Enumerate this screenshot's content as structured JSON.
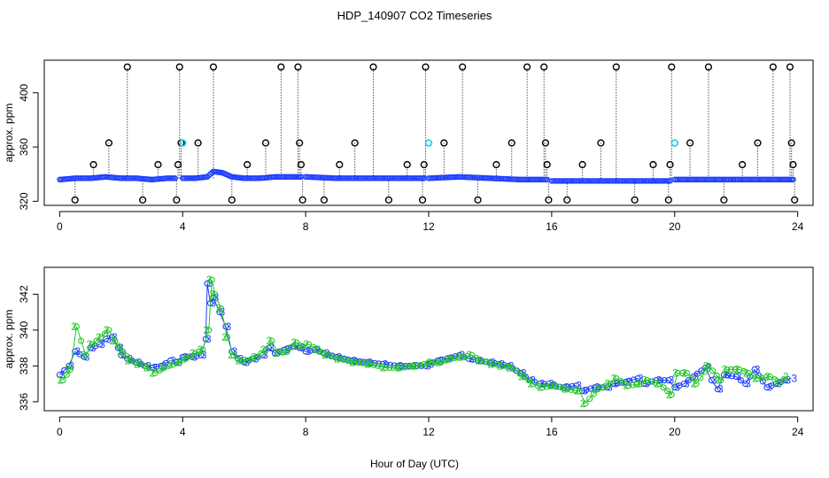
{
  "chart_data": [
    {
      "type": "scatter",
      "title": "HDP_140907  CO2 Timeseries",
      "ylabel": "approx. ppm",
      "xlim": [
        -0.5,
        24.5
      ],
      "ylim": [
        317,
        424
      ],
      "xticks": [
        0,
        4,
        8,
        12,
        16,
        20,
        24
      ],
      "yticks": [
        320,
        360,
        400
      ],
      "colors": {
        "baseline": "#1f3fff",
        "outlier": "#000000",
        "highlight": "#22d4e6"
      },
      "baseline_segments": [
        {
          "x": [
            0.0,
            0.5,
            1.0,
            1.5,
            2.0,
            2.5,
            3.0,
            3.5,
            3.8
          ],
          "y": [
            336,
            337,
            337,
            338,
            337,
            337,
            336,
            337,
            337
          ]
        },
        {
          "x": [
            4.0,
            4.4,
            4.8,
            5.0,
            5.3,
            5.6,
            6.0,
            6.5,
            7.0,
            7.5,
            7.9
          ],
          "y": [
            337,
            337,
            338,
            342,
            341,
            338,
            337,
            337,
            338,
            338,
            338
          ]
        },
        {
          "x": [
            8.0,
            9.0,
            10.0,
            11.0,
            11.9
          ],
          "y": [
            338,
            337,
            337,
            337,
            337
          ]
        },
        {
          "x": [
            12.0,
            13.0,
            14.0,
            15.0,
            15.9
          ],
          "y": [
            337,
            338,
            337,
            336,
            336
          ]
        },
        {
          "x": [
            16.0,
            17.0,
            18.0,
            19.0,
            19.9
          ],
          "y": [
            335,
            335,
            335,
            335,
            335
          ]
        },
        {
          "x": [
            20.0,
            21.0,
            22.0,
            23.0,
            23.9
          ],
          "y": [
            336,
            336,
            336,
            336,
            336
          ]
        }
      ],
      "outliers": [
        {
          "x": 0.5,
          "y": 321
        },
        {
          "x": 1.1,
          "y": 347
        },
        {
          "x": 1.6,
          "y": 363
        },
        {
          "x": 2.2,
          "y": 419
        },
        {
          "x": 2.7,
          "y": 321
        },
        {
          "x": 3.2,
          "y": 347
        },
        {
          "x": 3.8,
          "y": 321
        },
        {
          "x": 3.85,
          "y": 347
        },
        {
          "x": 3.9,
          "y": 419
        },
        {
          "x": 3.95,
          "y": 363
        },
        {
          "x": 4.5,
          "y": 363
        },
        {
          "x": 5.0,
          "y": 419
        },
        {
          "x": 5.6,
          "y": 321
        },
        {
          "x": 6.1,
          "y": 347
        },
        {
          "x": 6.7,
          "y": 363
        },
        {
          "x": 7.2,
          "y": 419
        },
        {
          "x": 7.75,
          "y": 419
        },
        {
          "x": 7.8,
          "y": 363
        },
        {
          "x": 7.85,
          "y": 347
        },
        {
          "x": 7.9,
          "y": 321
        },
        {
          "x": 8.6,
          "y": 321
        },
        {
          "x": 9.1,
          "y": 347
        },
        {
          "x": 9.6,
          "y": 363
        },
        {
          "x": 10.2,
          "y": 419
        },
        {
          "x": 10.7,
          "y": 321
        },
        {
          "x": 11.3,
          "y": 347
        },
        {
          "x": 11.8,
          "y": 321
        },
        {
          "x": 11.85,
          "y": 347
        },
        {
          "x": 11.9,
          "y": 419
        },
        {
          "x": 12.5,
          "y": 363
        },
        {
          "x": 13.1,
          "y": 419
        },
        {
          "x": 13.6,
          "y": 321
        },
        {
          "x": 14.2,
          "y": 347
        },
        {
          "x": 14.7,
          "y": 363
        },
        {
          "x": 15.2,
          "y": 419
        },
        {
          "x": 15.75,
          "y": 419
        },
        {
          "x": 15.8,
          "y": 363
        },
        {
          "x": 15.85,
          "y": 347
        },
        {
          "x": 15.9,
          "y": 321
        },
        {
          "x": 16.5,
          "y": 321
        },
        {
          "x": 17.0,
          "y": 347
        },
        {
          "x": 17.6,
          "y": 363
        },
        {
          "x": 18.1,
          "y": 419
        },
        {
          "x": 18.7,
          "y": 321
        },
        {
          "x": 19.3,
          "y": 347
        },
        {
          "x": 19.8,
          "y": 321
        },
        {
          "x": 19.85,
          "y": 347
        },
        {
          "x": 19.9,
          "y": 419
        },
        {
          "x": 20.5,
          "y": 363
        },
        {
          "x": 21.1,
          "y": 419
        },
        {
          "x": 21.6,
          "y": 321
        },
        {
          "x": 22.2,
          "y": 347
        },
        {
          "x": 22.7,
          "y": 363
        },
        {
          "x": 23.2,
          "y": 419
        },
        {
          "x": 23.75,
          "y": 419
        },
        {
          "x": 23.8,
          "y": 363
        },
        {
          "x": 23.85,
          "y": 347
        },
        {
          "x": 23.9,
          "y": 321
        }
      ],
      "highlights": [
        {
          "x": 4.0,
          "y": 363
        },
        {
          "x": 12.0,
          "y": 363
        },
        {
          "x": 20.0,
          "y": 363
        }
      ]
    },
    {
      "type": "line",
      "title": "",
      "xlabel": "Hour of Day (UTC)",
      "ylabel": "approx. ppm",
      "xlim": [
        -0.5,
        24.5
      ],
      "ylim": [
        335.5,
        343.5
      ],
      "xticks": [
        0,
        4,
        8,
        12,
        16,
        20,
        24
      ],
      "yticks": [
        336,
        338,
        340,
        342
      ],
      "series": [
        {
          "label_char": "3",
          "color": "#1f3fff",
          "x": [
            0.0,
            0.3,
            0.5,
            0.8,
            1.0,
            1.3,
            1.5,
            1.7,
            1.9,
            2.0,
            2.2,
            2.5,
            2.8,
            3.0,
            3.3,
            3.6,
            3.8,
            4.0,
            4.3,
            4.6,
            4.75,
            4.8,
            4.9,
            5.0,
            5.2,
            5.4,
            5.6,
            5.8,
            6.0,
            6.3,
            6.6,
            6.8,
            7.0,
            7.3,
            7.6,
            7.8,
            8.0,
            8.3,
            8.6,
            9.0,
            9.5,
            10.0,
            10.5,
            11.0,
            11.5,
            11.9,
            12.0,
            12.3,
            12.6,
            13.0,
            13.3,
            13.6,
            14.0,
            14.3,
            14.6,
            15.0,
            15.3,
            15.6,
            15.9,
            16.0,
            16.4,
            16.8,
            17.0,
            17.4,
            17.8,
            18.0,
            18.4,
            18.8,
            19.0,
            19.4,
            19.8,
            20.0,
            20.3,
            20.6,
            21.0,
            21.2,
            21.4,
            21.6,
            22.0,
            22.3,
            22.6,
            23.0,
            23.3,
            23.6,
            23.8
          ],
          "y": [
            337.5,
            338.0,
            338.8,
            338.5,
            339.0,
            339.2,
            339.5,
            339.6,
            339.0,
            338.6,
            338.4,
            338.2,
            338.0,
            337.9,
            338.0,
            338.3,
            338.2,
            338.5,
            338.5,
            338.6,
            339.5,
            342.6,
            341.5,
            341.8,
            341.0,
            340.2,
            338.8,
            338.4,
            338.2,
            338.4,
            338.6,
            339.0,
            338.7,
            338.9,
            339.1,
            339.0,
            338.8,
            338.9,
            338.7,
            338.5,
            338.3,
            338.2,
            338.1,
            338.0,
            338.0,
            338.0,
            338.1,
            338.3,
            338.4,
            338.6,
            338.4,
            338.3,
            338.2,
            338.1,
            338.0,
            337.6,
            337.2,
            337.0,
            337.0,
            336.9,
            336.8,
            336.9,
            336.6,
            336.8,
            336.8,
            337.0,
            337.1,
            337.3,
            337.0,
            337.2,
            337.2,
            336.8,
            337.0,
            337.4,
            337.9,
            337.2,
            336.7,
            337.5,
            337.4,
            337.0,
            337.8,
            336.8,
            337.0,
            337.2,
            337.3
          ]
        },
        {
          "label_char": "2",
          "color": "#22c72a",
          "x": [
            0.1,
            0.35,
            0.55,
            0.85,
            1.05,
            1.35,
            1.6,
            1.8,
            2.05,
            2.3,
            2.6,
            2.9,
            3.1,
            3.4,
            3.7,
            3.9,
            4.1,
            4.4,
            4.65,
            4.85,
            4.95,
            5.05,
            5.25,
            5.45,
            5.65,
            5.9,
            6.1,
            6.4,
            6.7,
            6.9,
            7.1,
            7.4,
            7.7,
            7.9,
            8.1,
            8.4,
            8.7,
            9.1,
            9.6,
            10.1,
            10.6,
            11.1,
            11.6,
            12.1,
            12.4,
            12.7,
            13.1,
            13.4,
            13.7,
            14.1,
            14.4,
            14.7,
            15.1,
            15.4,
            15.7,
            16.1,
            16.5,
            16.9,
            17.1,
            17.5,
            17.9,
            18.1,
            18.5,
            18.9,
            19.1,
            19.5,
            19.9,
            20.1,
            20.4,
            20.7,
            21.1,
            21.5,
            21.7,
            22.1,
            22.4,
            22.7,
            23.1,
            23.4,
            23.7
          ],
          "y": [
            337.2,
            337.8,
            340.2,
            338.6,
            339.2,
            339.6,
            340.0,
            339.4,
            338.8,
            338.3,
            338.1,
            337.9,
            337.6,
            337.9,
            338.1,
            338.2,
            338.4,
            338.7,
            338.9,
            340.0,
            342.8,
            342.0,
            341.2,
            339.6,
            338.6,
            338.3,
            338.3,
            338.5,
            338.9,
            339.4,
            338.7,
            338.8,
            339.3,
            339.1,
            339.2,
            338.9,
            338.6,
            338.4,
            338.2,
            338.1,
            337.9,
            337.9,
            338.0,
            338.2,
            338.2,
            338.4,
            338.5,
            338.6,
            338.3,
            338.1,
            338.0,
            337.9,
            337.4,
            337.0,
            336.8,
            336.9,
            336.7,
            336.6,
            335.9,
            336.7,
            337.0,
            337.3,
            336.9,
            337.0,
            337.2,
            337.0,
            336.4,
            337.6,
            337.6,
            337.0,
            338.0,
            337.2,
            337.8,
            337.8,
            337.6,
            337.3,
            337.4,
            337.1,
            337.4
          ]
        }
      ]
    }
  ]
}
